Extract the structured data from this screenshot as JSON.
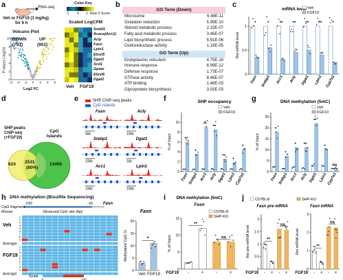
{
  "panel_labels": {
    "a": "a",
    "b": "b",
    "c": "c",
    "d": "d",
    "e": "e",
    "f": "f",
    "g": "g",
    "h": "h",
    "i": "i",
    "j": "j"
  },
  "panel_a": {
    "treatment": "Veh or FGF19 (1 mg/kg)",
    "duration": "for 6 h",
    "assay": "RNA-seq",
    "color_key_title": "Color Key",
    "color_key_ticks": [
      "-1",
      "0",
      "1"
    ],
    "color_key_label": "Row Z-Score",
    "scaled_label": "Scaled LogCPM",
    "volcano_title": "Volcano Plot",
    "down_label": "DOWN",
    "down_count": "(791)",
    "up_label": "UP",
    "up_count": "(951)",
    "ylabel": "P values (-log10)",
    "xlabel": "Log2 FC",
    "xticks": [
      "-6",
      "-4",
      "-2",
      "0",
      "2",
      "4",
      "6"
    ],
    "yticks": [
      "0",
      "2",
      "4",
      "6",
      "8",
      "10"
    ],
    "genes": [
      "Srebf1",
      "Acaca(Acc1)",
      "Acly",
      "Fasn",
      "Lpin1",
      "Elovl5",
      "Dgat1",
      "Scd1",
      "Gpam",
      "Elovl6",
      "Dgat2"
    ],
    "groups": [
      "Veh",
      "FGF19"
    ]
  },
  "panel_b": {
    "down_header": "GO Term (Down)",
    "down": [
      {
        "term": "Microsome",
        "p": "6.48E-11"
      },
      {
        "term": "Oxidation reduction",
        "p": "5.99E-10"
      },
      {
        "term": "Steroid metabolic process",
        "p": "2.15E-07"
      },
      {
        "term": "Fatty acid metabolic process",
        "p": "3.46E-07"
      },
      {
        "term": "Lipid biosynthetic process",
        "p": "5.91E-06"
      },
      {
        "term": "Oxidoreductase activity",
        "p": "1.18E-05"
      }
    ],
    "up_header": "GO Term (Up)",
    "up": [
      {
        "term": "Endoplasmic reticulum",
        "p": "4.75E-18"
      },
      {
        "term": "Immune response",
        "p": "6.99E-12"
      },
      {
        "term": "Defense response",
        "p": "1.73E-07"
      },
      {
        "term": "GTPase activity",
        "p": "8.46E-07"
      },
      {
        "term": "ATP binding",
        "p": "1.46E-03"
      },
      {
        "term": "Glycoprotein biosynthesis",
        "p": "3.02E-03"
      }
    ]
  },
  "panel_d": {
    "left_label": "SHP peaks ChIP-seq (+FGF19)",
    "right_label": "CpG Islands",
    "left_only": "624",
    "overlap": "2531",
    "overlap_pct": "(80%)",
    "right_only": "13495"
  },
  "panel_e": {
    "legend_peaks": "SHP ChIP-seq peaks",
    "legend_cpg": "CpG islands",
    "tracks": [
      {
        "gene": "Fasn",
        "scale": "5kb"
      },
      {
        "gene": "Acly",
        "scale": "10kb"
      },
      {
        "gene": "Srebp1",
        "scale": "10kb"
      },
      {
        "gene": "Dgat1",
        "scale": "1kb"
      },
      {
        "gene": "Acc1",
        "scale": "10kb"
      },
      {
        "gene": "Lpin1",
        "scale": "10kb"
      }
    ]
  },
  "chart_data": [
    {
      "id": "c",
      "type": "bar",
      "title": "mRNA level",
      "ylabel": "Rel mRNA level",
      "categories": [
        "Fasn",
        "Srebp1",
        "Acc1",
        "Acly",
        "Dgat1",
        "Lpin1",
        "Cyp7a1"
      ],
      "ylim": [
        0,
        1.2
      ],
      "yticks": [
        0,
        0.5,
        1.0
      ],
      "series": [
        {
          "name": "Veh",
          "color": "#ffffff",
          "values": [
            1,
            1,
            1,
            1,
            1,
            1,
            1
          ]
        },
        {
          "name": "FGF19",
          "color": "#9ec4ea",
          "values": [
            0.35,
            0.55,
            0.3,
            0.45,
            0.5,
            0.4,
            0.25
          ]
        }
      ],
      "annotations": [
        "*",
        "*",
        "**",
        "**",
        "**",
        "**",
        "*"
      ]
    },
    {
      "id": "f",
      "type": "bar",
      "title": "SHP occupancy",
      "ylabel": "% of input",
      "categories": [
        "Fasn",
        "Srebp1",
        "Acc1",
        "Acly",
        "Dgat1",
        "Lpin1",
        "Cyp7a1"
      ],
      "ylim": [
        0,
        12
      ],
      "yticks": [
        0,
        2,
        4,
        6,
        8,
        10
      ],
      "series": [
        {
          "name": "Veh",
          "color": "#ffffff",
          "values": [
            0.5,
            0.5,
            0.5,
            0.5,
            0.5,
            0.5,
            0.5
          ]
        },
        {
          "name": "FGF19",
          "color": "#9ec4ea",
          "values": [
            6,
            3.5,
            9,
            8.5,
            2.5,
            1.8,
            4.5
          ]
        }
      ],
      "annotations": [
        "**",
        "*",
        "**",
        "**",
        "**",
        "*",
        "*"
      ]
    },
    {
      "id": "g",
      "type": "bar",
      "title": "DNA methylation (5mC)",
      "ylabel": "% of Input",
      "categories": [
        "Fasn",
        "Srebp1",
        "Acc1",
        "Acly",
        "Dgat1",
        "Lpin1",
        "Cyp7a1"
      ],
      "ylim": [
        0,
        27
      ],
      "yticks": [
        0,
        5,
        10,
        15,
        20,
        25
      ],
      "series": [
        {
          "name": "Veh",
          "color": "#ffffff",
          "values": [
            2,
            1.5,
            2,
            1.5,
            3,
            2.5,
            1.5
          ]
        },
        {
          "name": "FGF19",
          "color": "#9ec4ea",
          "values": [
            18,
            7,
            11,
            11,
            22,
            10,
            1.5
          ]
        }
      ],
      "annotations": [
        "*",
        "*",
        "*",
        "**",
        "**",
        "*",
        "ns"
      ]
    },
    {
      "id": "h_bar",
      "type": "bar",
      "ylabel": "Methylated CpG %",
      "categories": [
        "Veh",
        "FGF19"
      ],
      "ylim": [
        0,
        20
      ],
      "yticks": [
        0,
        5,
        10,
        15,
        20
      ],
      "series": [
        {
          "name": "",
          "color": "#9ec4ea",
          "values": [
            3,
            11
          ]
        }
      ],
      "annotations": [
        "*"
      ]
    },
    {
      "id": "i",
      "type": "bar",
      "title": "DNA methylation (5mC)",
      "subtitle": "Fasn",
      "ylabel": "% of Input",
      "categories": [
        "-",
        "+",
        "-",
        "+"
      ],
      "xlabel": "FGF19",
      "ylim": [
        0,
        15
      ],
      "yticks": [
        0,
        5,
        10,
        15
      ],
      "series": [
        {
          "name": "",
          "colors": [
            "#ffffff",
            "#ffffff",
            "#f0b560",
            "#f0b560"
          ],
          "values": [
            2,
            12,
            8,
            8
          ]
        }
      ],
      "annotations": [
        "**",
        "ns"
      ],
      "legend": [
        {
          "name": "C57BL/6",
          "color": "#ffffff"
        },
        {
          "name": "SHP-KO",
          "color": "#f0b560"
        }
      ]
    },
    {
      "id": "j1",
      "type": "bar",
      "title": "Fasn pre-mRNA",
      "ylabel": "Rel pre-mRNA level",
      "categories": [
        "-",
        "+",
        "-",
        "+"
      ],
      "xlabel": "FGF19",
      "ylim": [
        0,
        2.2
      ],
      "yticks": [
        0,
        0.5,
        1.0,
        1.5,
        2.0
      ],
      "series": [
        {
          "name": "",
          "colors": [
            "#ffffff",
            "#ffffff",
            "#f0b560",
            "#f0b560"
          ],
          "values": [
            1,
            0.3,
            1.6,
            1.55
          ]
        }
      ],
      "annotations": [
        "**",
        "ns"
      ]
    },
    {
      "id": "j2",
      "type": "bar",
      "title": "Fasn mRNA",
      "ylabel": "Rel mRNA level",
      "categories": [
        "-",
        "+",
        "-",
        "+"
      ],
      "xlabel": "FGF19",
      "ylim": [
        0,
        3
      ],
      "yticks": [
        0,
        1,
        2,
        3
      ],
      "series": [
        {
          "name": "",
          "colors": [
            "#ffffff",
            "#ffffff",
            "#f0b560",
            "#f0b560"
          ],
          "values": [
            1,
            0.35,
            2.3,
            2.25
          ]
        }
      ],
      "annotations": [
        "**",
        "ns"
      ]
    }
  ],
  "legend_cfg": {
    "veh": "Veh",
    "fgf19": "FGF19",
    "c57": "C57BL/6",
    "shpko": "SHP-KO"
  },
  "panel_h": {
    "title": "DNA methylation (Bisulfite Sequencing)",
    "gene": "Fasn",
    "pos_left": "-232",
    "pos_right": "-16",
    "observed_label": "Observed CpG site (bp)",
    "cpg_label": "CpG fragment",
    "veh_label": "Veh",
    "fgf_label": "FGF19",
    "average_label": "Average",
    "scale_label": "Scale",
    "scale_min": "0",
    "scale_max": "100",
    "mouse_label": "Mouse"
  }
}
